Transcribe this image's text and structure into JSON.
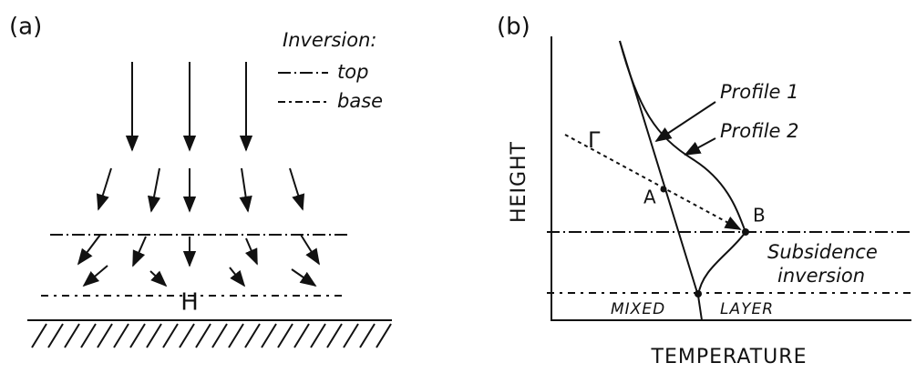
{
  "panel_a": {
    "label": "(a)",
    "legend_title": "Inversion:",
    "legend_top": "top",
    "legend_base": "base",
    "high_pressure": "H"
  },
  "panel_b": {
    "label": "(b)",
    "y_axis_label": "HEIGHT",
    "x_axis_label": "TEMPERATURE",
    "profile_1": "Profile 1",
    "profile_2": "Profile 2",
    "lapse_rate": "Γ",
    "point_a": "A",
    "point_b": "B",
    "inversion_line1": "Subsidence",
    "inversion_line2": "inversion",
    "mixed_layer_1": "MIXED",
    "mixed_layer_2": "LAYER"
  }
}
